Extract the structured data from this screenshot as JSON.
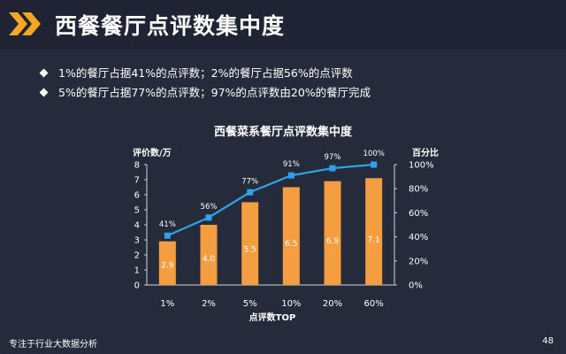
{
  "slide": {
    "title": "西餐餐厅点评数集中度",
    "bullets": [
      "1%的餐厅占据41%的点评数；2%的餐厅占据56%的点评数",
      "5%的餐厅占据77%的点评数；97%的点评数由20%的餐厅完成"
    ],
    "footer": "专注于行业大数据分析",
    "page_number": "48"
  },
  "colors": {
    "bar": "#f59d41",
    "line": "#2fa3e8",
    "accent": "#f5a623"
  },
  "chart_data": {
    "type": "bar+line",
    "title": "西餐菜系餐厅点评数集中度",
    "xlabel": "点评数TOP",
    "ylabel_left": "评价数/万",
    "ylabel_right": "百分比",
    "categories": [
      "1%",
      "2%",
      "5%",
      "10%",
      "20%",
      "60%"
    ],
    "series": [
      {
        "type": "bar",
        "axis": "left",
        "values": [
          2.9,
          4.0,
          5.5,
          6.5,
          6.9,
          7.1
        ]
      },
      {
        "type": "line",
        "axis": "right",
        "values": [
          41,
          56,
          77,
          91,
          97,
          100
        ]
      }
    ],
    "ylim_left": [
      0,
      8
    ],
    "ylim_right": [
      0,
      100
    ],
    "left_ticks": [
      "0",
      "1",
      "2",
      "3",
      "4",
      "5",
      "6",
      "7",
      "8"
    ],
    "right_ticks": [
      "0%",
      "20%",
      "40%",
      "60%",
      "80%",
      "100%"
    ],
    "bar_labels": [
      "2.9",
      "4.0",
      "5.5",
      "6.5",
      "6.9",
      "7.1"
    ],
    "line_labels": [
      "41%",
      "56%",
      "77%",
      "91%",
      "97%",
      "100%"
    ]
  }
}
